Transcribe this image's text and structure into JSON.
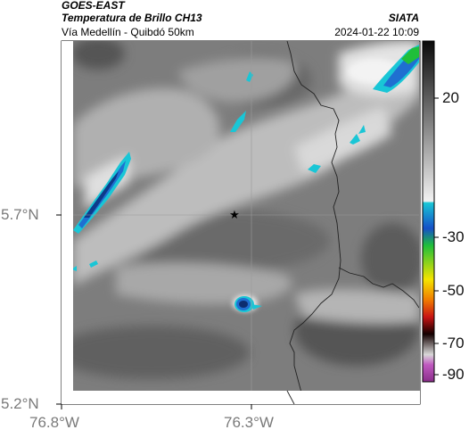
{
  "header": {
    "satellite": "GOES-EAST",
    "product": "Temperatura de Brillo CH13",
    "region": "Vía Medellín - Quibdó 50km",
    "brand": "SIATA",
    "datetime": "2024-01-22 10:09"
  },
  "axes": {
    "lat_labels": [
      "5.7°N",
      "5.2°N"
    ],
    "lon_labels": [
      "76.8°W",
      "76.3°W"
    ]
  },
  "colorbar": {
    "tick_labels": [
      "20",
      "-30",
      "-50",
      "-70",
      "-90"
    ]
  },
  "markers": {
    "station_icon": "star-icon"
  },
  "colors": {
    "cold_cloud": "#1f6fd1",
    "cyan_edge": "#19c6d6",
    "green_top": "#1fbf3a",
    "border_line": "#222222"
  }
}
